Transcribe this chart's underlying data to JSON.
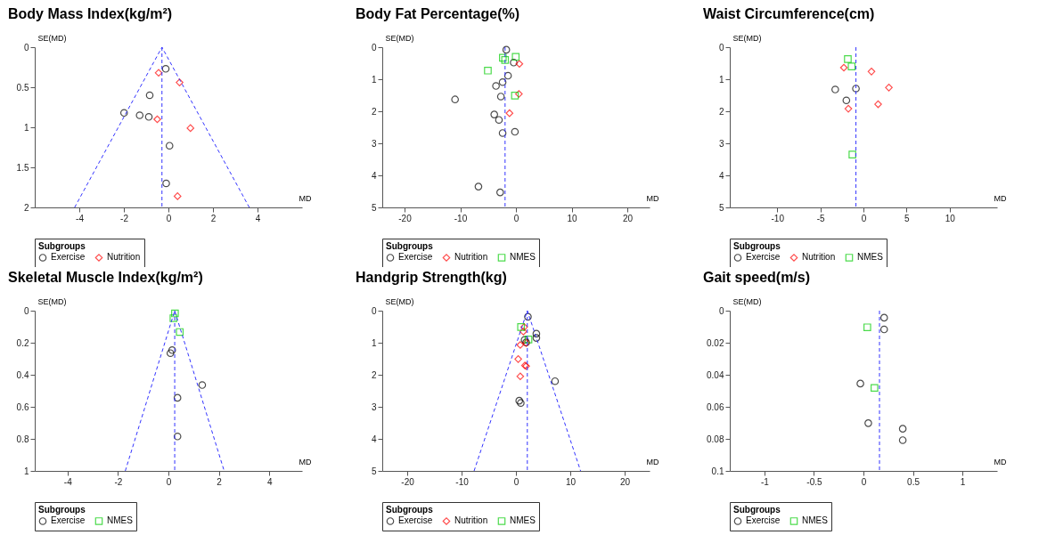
{
  "chart_data": [
    {
      "type": "scatter",
      "title": "Body Mass Index(kg/m²)",
      "xlabel": "MD",
      "ylabel": "SE(MD)",
      "legend_title": "Subgroups",
      "legend": "bottom",
      "grid": false,
      "xlim": [
        -6,
        6
      ],
      "xticks": [
        -4,
        -2,
        0,
        2,
        4
      ],
      "ylim": [
        2,
        0
      ],
      "yticks": [
        0,
        0.5,
        1,
        1.5,
        2
      ],
      "series": [
        {
          "name": "Exercise",
          "color": "#000000",
          "marker": "circle",
          "x": [
            -0.12,
            -0.84,
            -1.99,
            -1.29,
            -0.88,
            0.05,
            -0.1
          ],
          "values": [
            0.27,
            0.6,
            0.82,
            0.85,
            0.87,
            1.23,
            1.7
          ]
        },
        {
          "name": "Nutrition",
          "color": "#ff0000",
          "marker": "diamond",
          "x": [
            -0.44,
            0.5,
            -0.5,
            0.99,
            0.41
          ],
          "values": [
            0.32,
            0.44,
            0.9,
            1.01,
            1.86
          ]
        },
        {
          "type": "line",
          "color": "#3333ff",
          "line_style": "dashed",
          "x": [
            -4.21,
            -0.29,
            3.63
          ],
          "values": [
            2,
            0,
            2
          ]
        }
      ],
      "ref_lines": [
        {
          "axis": "x",
          "value": -0.29,
          "color": "#3333ff",
          "line_style": "dashed"
        }
      ]
    },
    {
      "type": "scatter",
      "title": "Body Fat Percentage(%)",
      "xlabel": "MD",
      "ylabel": "SE(MD)",
      "legend_title": "Subgroups",
      "legend": "bottom",
      "grid": false,
      "xlim": [
        -24,
        24
      ],
      "xticks": [
        -20,
        -10,
        0,
        10,
        20
      ],
      "ylim": [
        5,
        0
      ],
      "yticks": [
        0,
        1,
        2,
        3,
        4,
        5
      ],
      "series": [
        {
          "name": "Exercise",
          "color": "#000000",
          "marker": "circle",
          "x": [
            -1.73,
            -0.4,
            -1.42,
            -2.39,
            -3.58,
            -2.7,
            -10.93,
            -3.89,
            -3.05,
            -2.39,
            -0.18,
            -6.73,
            -2.83
          ],
          "values": [
            0.08,
            0.48,
            0.89,
            1.09,
            1.21,
            1.54,
            1.63,
            2.1,
            2.27,
            2.68,
            2.64,
            4.35,
            4.53
          ]
        },
        {
          "name": "Nutrition",
          "color": "#ff0000",
          "marker": "diamond",
          "x": [
            0.62,
            0.53,
            -1.15
          ],
          "values": [
            0.52,
            1.46,
            2.06
          ]
        },
        {
          "name": "NMES",
          "color": "#00cc00",
          "marker": "square",
          "x": [
            -2.35,
            -1.95,
            -0.04,
            -5.04,
            -0.18
          ],
          "values": [
            0.33,
            0.4,
            0.3,
            0.73,
            1.51
          ]
        }
      ],
      "ref_lines": [
        {
          "axis": "x",
          "value": -1.95,
          "color": "#3333ff",
          "line_style": "dashed"
        }
      ]
    },
    {
      "type": "scatter",
      "title": "Waist Circumference(cm)",
      "xlabel": "MD",
      "ylabel": "SE(MD)",
      "legend_title": "Subgroups",
      "legend": "bottom",
      "grid": false,
      "xlim": [
        -15.5,
        15.5
      ],
      "xticks": [
        -10,
        -5,
        0,
        5,
        10
      ],
      "ylim": [
        5,
        0
      ],
      "yticks": [
        0,
        1,
        2,
        3,
        4,
        5
      ],
      "series": [
        {
          "name": "Exercise",
          "color": "#000000",
          "marker": "circle",
          "x": [
            -3.27,
            -0.87,
            -1.98
          ],
          "values": [
            1.32,
            1.29,
            1.66
          ]
        },
        {
          "name": "Nutrition",
          "color": "#ff0000",
          "marker": "diamond",
          "x": [
            -2.27,
            0.93,
            2.95,
            1.7,
            -1.75
          ],
          "values": [
            0.64,
            0.76,
            1.26,
            1.78,
            1.92
          ]
        },
        {
          "name": "NMES",
          "color": "#00cc00",
          "marker": "square",
          "x": [
            -1.81,
            -1.37,
            -1.28
          ],
          "values": [
            0.37,
            0.6,
            3.35
          ]
        }
      ],
      "ref_lines": [
        {
          "axis": "x",
          "value": -0.87,
          "color": "#3333ff",
          "line_style": "dashed"
        }
      ]
    },
    {
      "type": "scatter",
      "title": "Skeletal Muscle Index(kg/m²)",
      "xlabel": "MD",
      "ylabel": "SE(MD)",
      "legend_title": "Subgroups",
      "legend": "bottom",
      "grid": false,
      "xlim": [
        -5.3,
        5.3
      ],
      "xticks": [
        -4,
        -2,
        0,
        2,
        4
      ],
      "ylim": [
        1,
        0
      ],
      "yticks": [
        0,
        0.2,
        0.4,
        0.6,
        0.8,
        1
      ],
      "series": [
        {
          "name": "Exercise",
          "color": "#000000",
          "marker": "circle",
          "x": [
            0.15,
            0.08,
            1.34,
            0.36,
            0.36
          ],
          "values": [
            0.246,
            0.265,
            0.464,
            0.544,
            0.785
          ]
        },
        {
          "name": "NMES",
          "color": "#00cc00",
          "marker": "square",
          "x": [
            0.26,
            0.2,
            0.45
          ],
          "values": [
            0.017,
            0.047,
            0.133
          ]
        },
        {
          "type": "line",
          "color": "#3333ff",
          "line_style": "dashed",
          "x": [
            -1.71,
            0.25,
            2.21
          ],
          "values": [
            1,
            0,
            1
          ]
        }
      ],
      "ref_lines": [
        {
          "axis": "x",
          "value": 0.25,
          "color": "#3333ff",
          "line_style": "dashed"
        }
      ]
    },
    {
      "type": "scatter",
      "title": "Handgrip Strength(kg)",
      "xlabel": "MD",
      "ylabel": "SE(MD)",
      "legend_title": "Subgroups",
      "legend": "bottom",
      "grid": false,
      "xlim": [
        -24.6,
        24.6
      ],
      "xticks": [
        -20,
        -10,
        0,
        10,
        20
      ],
      "ylim": [
        5,
        0
      ],
      "yticks": [
        0,
        1,
        2,
        3,
        4,
        5
      ],
      "series": [
        {
          "name": "Exercise",
          "color": "#000000",
          "marker": "circle",
          "x": [
            2.21,
            3.76,
            3.76,
            1.6,
            1.88,
            7.2,
            0.61,
            0.89
          ],
          "values": [
            0.19,
            0.72,
            0.85,
            0.91,
            0.99,
            2.2,
            2.81,
            2.88
          ]
        },
        {
          "name": "Nutrition",
          "color": "#ff0000",
          "marker": "diamond",
          "x": [
            1.51,
            1.36,
            1.88,
            0.8,
            0.42,
            1.65,
            1.88,
            0.8
          ],
          "values": [
            0.51,
            0.65,
            1.01,
            1.07,
            1.51,
            1.71,
            1.73,
            2.05
          ]
        },
        {
          "name": "NMES",
          "color": "#00cc00",
          "marker": "square",
          "x": [
            0.94,
            2.31
          ],
          "values": [
            0.51,
            0.9
          ]
        },
        {
          "type": "line",
          "color": "#3333ff",
          "line_style": "dashed",
          "x": [
            -7.7,
            2.1,
            11.9
          ],
          "values": [
            5,
            0,
            5
          ]
        }
      ],
      "ref_lines": [
        {
          "axis": "x",
          "value": 2.1,
          "color": "#3333ff",
          "line_style": "dashed"
        }
      ]
    },
    {
      "type": "scatter",
      "title": "Gait speed(m/s)",
      "xlabel": "MD",
      "ylabel": "SE(MD)",
      "legend_title": "Subgroups",
      "legend": "bottom",
      "grid": false,
      "xlim": [
        -1.35,
        1.35
      ],
      "xticks": [
        -1,
        -0.5,
        0,
        0.5,
        1
      ],
      "ylim": [
        0.1,
        0
      ],
      "yticks": [
        0,
        0.02,
        0.04,
        0.06,
        0.08,
        0.1
      ],
      "series": [
        {
          "name": "Exercise",
          "color": "#000000",
          "marker": "circle",
          "x": [
            0.209,
            0.209,
            -0.031,
            0.049,
            0.397,
            0.397
          ],
          "values": [
            0.0044,
            0.0117,
            0.0455,
            0.0702,
            0.0737,
            0.0808
          ]
        },
        {
          "name": "NMES",
          "color": "#00cc00",
          "marker": "square",
          "x": [
            0.039,
            0.111
          ],
          "values": [
            0.0104,
            0.0482
          ]
        }
      ],
      "ref_lines": [
        {
          "axis": "x",
          "value": 0.162,
          "color": "#3333ff",
          "line_style": "dashed"
        }
      ]
    }
  ]
}
